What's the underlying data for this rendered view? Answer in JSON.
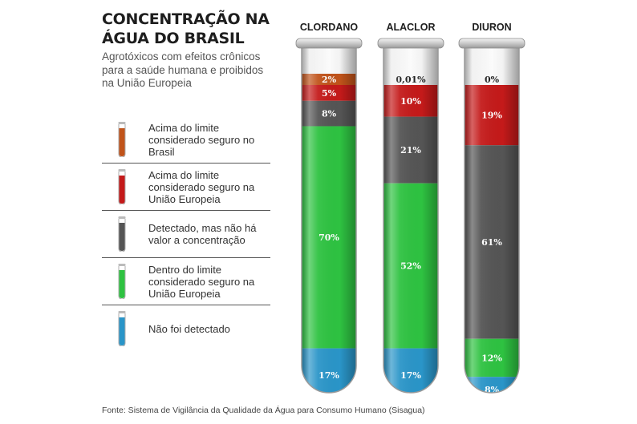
{
  "title": "CONCENTRAÇÃO NA ÁGUA DO BRASIL",
  "subtitle": "Agrotóxicos com efeitos crônicos para a saúde humana e proibidos na União Europeia",
  "legend": [
    {
      "label": "Acima do limite considerado seguro no Brasil",
      "color": "#c0531a"
    },
    {
      "label": "Acima do limite considerado seguro na União Europeia",
      "color": "#c41a1a"
    },
    {
      "label": "Detectado, mas não há valor a concentração",
      "color": "#555555"
    },
    {
      "label": "Dentro do limite considerado seguro na União Europeia",
      "color": "#2ec241"
    },
    {
      "label": "Não foi detectado",
      "color": "#2a95c8"
    }
  ],
  "source": "Fonte: Sistema de Vigilância da Qualidade da Água para Consumo Humano (Sisagua)",
  "chart_data": {
    "type": "bar",
    "stacked": true,
    "orientation": "vertical",
    "categories": [
      "CLORDANO",
      "ALACLOR",
      "DIURON"
    ],
    "series": [
      {
        "name": "Acima do limite considerado seguro no Brasil",
        "color": "#c0531a",
        "values": [
          2,
          0.01,
          0
        ],
        "labels": [
          "2%",
          "0,01%",
          "0%"
        ]
      },
      {
        "name": "Acima do limite considerado seguro na União Europeia",
        "color": "#c41a1a",
        "values": [
          5,
          10,
          19
        ],
        "labels": [
          "5%",
          "10%",
          "19%"
        ]
      },
      {
        "name": "Detectado, mas não há valor a concentração",
        "color": "#555555",
        "values": [
          8,
          21,
          61
        ],
        "labels": [
          "8%",
          "21%",
          "61%"
        ]
      },
      {
        "name": "Dentro do limite considerado seguro na União Europeia",
        "color": "#2ec241",
        "values": [
          70,
          52,
          12
        ],
        "labels": [
          "70%",
          "52%",
          "12%"
        ]
      },
      {
        "name": "Não foi detectado",
        "color": "#2a95c8",
        "values": [
          17,
          17,
          8
        ],
        "labels": [
          "17%",
          "17%",
          "8%"
        ]
      }
    ],
    "ylim": [
      0,
      100
    ],
    "unit": "%"
  }
}
